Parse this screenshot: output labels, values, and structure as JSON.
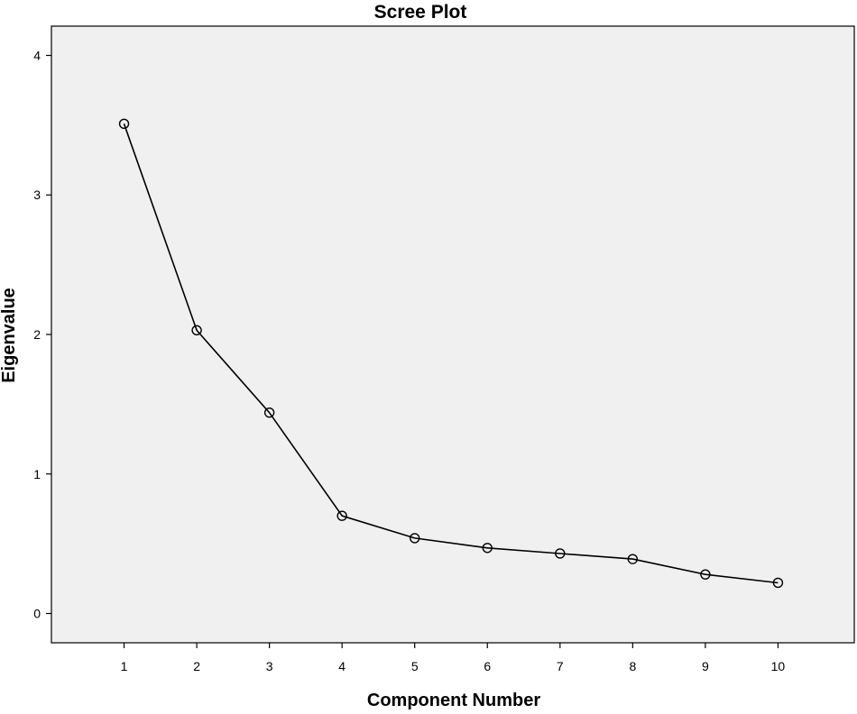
{
  "chart_data": {
    "type": "line",
    "title": "Scree Plot",
    "xlabel": "Component Number",
    "ylabel": "Eigenvalue",
    "x": [
      1,
      2,
      3,
      4,
      5,
      6,
      7,
      8,
      9,
      10
    ],
    "series": [
      {
        "values": [
          3.51,
          2.03,
          1.44,
          0.7,
          0.54,
          0.47,
          0.43,
          0.39,
          0.28,
          0.22
        ]
      }
    ],
    "xticks": [
      "1",
      "2",
      "3",
      "4",
      "5",
      "6",
      "7",
      "8",
      "9",
      "10"
    ],
    "yticks": [
      "0",
      "1",
      "2",
      "3",
      "4"
    ],
    "xlim": [
      0.0,
      11.05
    ],
    "ylim": [
      -0.21,
      4.21
    ],
    "grid": false,
    "legend": "none",
    "marker": "open-circle",
    "colors": {
      "plot_background": "#f0f0f0",
      "line": "#000000",
      "axis": "#000000"
    }
  }
}
